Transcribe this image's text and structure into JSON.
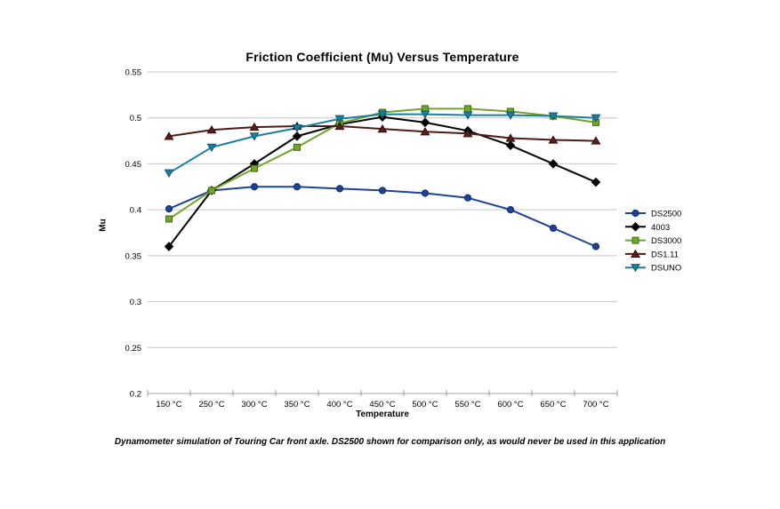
{
  "title": "Friction Coefficient (Mu) Versus Temperature",
  "caption": "Dynamometer simulation of Touring Car front axle. DS2500 shown for comparison only, as would never be used in this application",
  "x_axis": {
    "label": "Temperature"
  },
  "y_axis": {
    "label": "Mu"
  },
  "colors": {
    "gridline": "#c6c6c6",
    "axis": "#a0a0a0",
    "text": "#000000"
  },
  "chart_data": {
    "type": "line",
    "title": "Friction Coefficient (Mu) Versus Temperature",
    "xlabel": "Temperature",
    "ylabel": "Mu",
    "ylim": [
      0.2,
      0.55
    ],
    "ytick_step": 0.05,
    "yticks": [
      "0.55",
      "0.5",
      "0.45",
      "0.4",
      "0.35",
      "0.3",
      "0.25",
      "0.2"
    ],
    "grid": true,
    "legend_position": "right",
    "categories": [
      "150 °C",
      "250 °C",
      "300 °C",
      "350 °C",
      "400 °C",
      "450 °C",
      "500 °C",
      "550 °C",
      "600 °C",
      "650 °C",
      "700 °C"
    ],
    "series": [
      {
        "name": "DS2500",
        "marker": "circle",
        "color": "#1e4294",
        "marker_fill": "#1e4294",
        "marker_stroke": "#0e2b6b",
        "values": [
          0.401,
          0.421,
          0.425,
          0.425,
          0.423,
          0.421,
          0.418,
          0.413,
          0.4,
          0.38,
          0.36
        ]
      },
      {
        "name": "4003",
        "marker": "diamond",
        "color": "#000000",
        "marker_fill": "#000000",
        "marker_stroke": "#000000",
        "values": [
          0.36,
          0.421,
          0.45,
          0.48,
          0.493,
          0.501,
          0.495,
          0.486,
          0.47,
          0.45,
          0.43
        ]
      },
      {
        "name": "DS3000",
        "marker": "square",
        "color": "#71a52c",
        "marker_fill": "#71a52c",
        "marker_stroke": "#436b14",
        "values": [
          0.39,
          0.421,
          0.445,
          0.468,
          0.494,
          0.506,
          0.51,
          0.51,
          0.507,
          0.502,
          0.495
        ]
      },
      {
        "name": "DS1.11",
        "marker": "triangle-up",
        "color": "#4f1a17",
        "marker_fill": "#5a1f1c",
        "marker_stroke": "#2a0c0a",
        "values": [
          0.48,
          0.487,
          0.49,
          0.491,
          0.491,
          0.488,
          0.485,
          0.483,
          0.478,
          0.476,
          0.475
        ]
      },
      {
        "name": "DSUNO",
        "marker": "triangle-down",
        "color": "#1c7e9e",
        "marker_fill": "#1c7e9e",
        "marker_stroke": "#0d5a75",
        "values": [
          0.44,
          0.468,
          0.48,
          0.489,
          0.499,
          0.504,
          0.504,
          0.503,
          0.503,
          0.502,
          0.5
        ]
      }
    ]
  }
}
